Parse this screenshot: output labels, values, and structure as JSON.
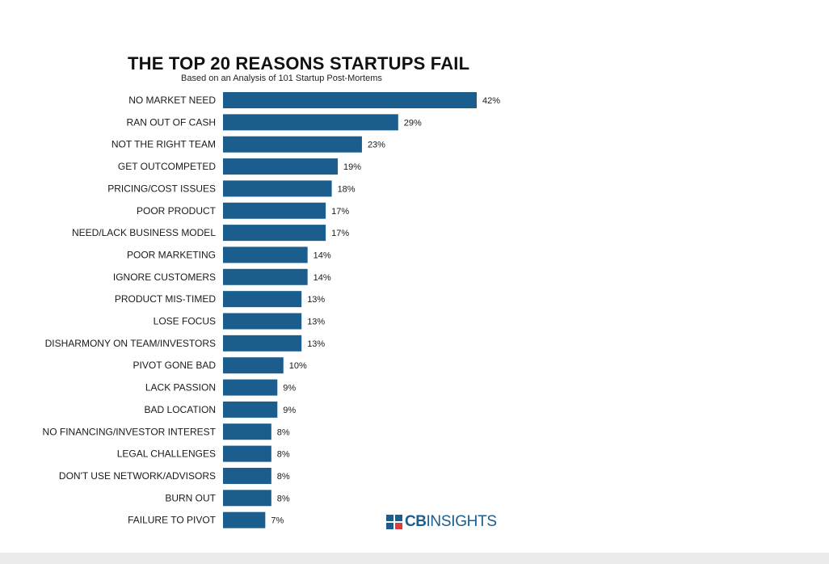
{
  "chart_data": {
    "type": "bar",
    "orientation": "horizontal",
    "title": "THE TOP 20 REASONS STARTUPS FAIL",
    "subtitle": "Based on an Analysis of 101 Startup Post-Mortems",
    "categories": [
      "NO MARKET NEED",
      "RAN OUT OF CASH",
      "NOT THE RIGHT TEAM",
      "GET OUTCOMPETED",
      "PRICING/COST ISSUES",
      "POOR PRODUCT",
      "NEED/LACK BUSINESS MODEL",
      "POOR MARKETING",
      "IGNORE CUSTOMERS",
      "PRODUCT MIS-TIMED",
      "LOSE FOCUS",
      "DISHARMONY ON TEAM/INVESTORS",
      "PIVOT GONE BAD",
      "LACK PASSION",
      "BAD LOCATION",
      "NO FINANCING/INVESTOR INTEREST",
      "LEGAL CHALLENGES",
      "DON'T USE NETWORK/ADVISORS",
      "BURN OUT",
      "FAILURE TO PIVOT"
    ],
    "values": [
      42,
      29,
      23,
      19,
      18,
      17,
      17,
      14,
      14,
      13,
      13,
      13,
      10,
      9,
      9,
      8,
      8,
      8,
      8,
      7
    ],
    "value_labels": [
      "42%",
      "29%",
      "23%",
      "19%",
      "18%",
      "17%",
      "17%",
      "14%",
      "14%",
      "13%",
      "13%",
      "13%",
      "10%",
      "9%",
      "9%",
      "8%",
      "8%",
      "8%",
      "8%",
      "7%"
    ],
    "unit": "%",
    "xlim": [
      0,
      42
    ],
    "grid": false,
    "bar_color": "#1b5e8e"
  },
  "branding": {
    "logo_bold": "CB",
    "logo_light": "INSIGHTS",
    "logo_color": "#1b5e8e",
    "logo_icon": "cb-insights-logo-icon"
  }
}
